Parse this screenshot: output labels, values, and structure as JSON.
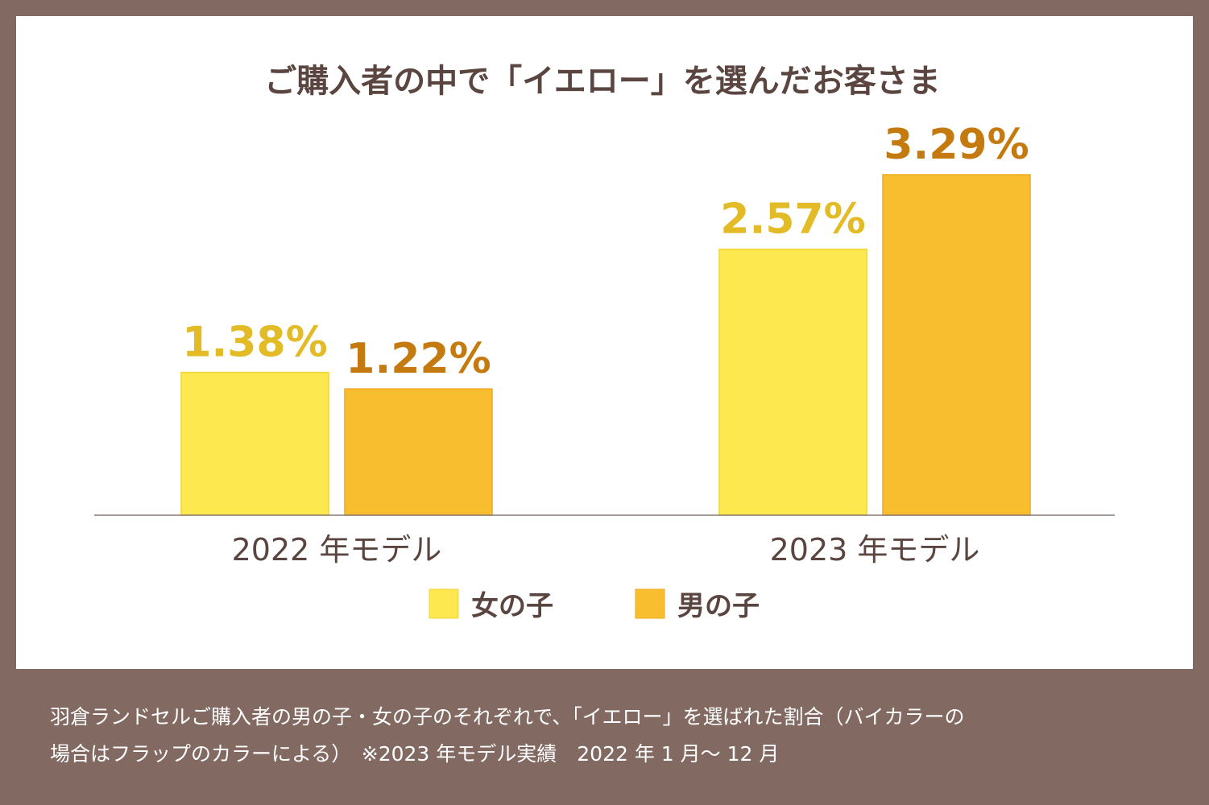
{
  "chart_data": {
    "type": "bar",
    "title": "ご購入者の中で「イエロー」を選んだお客さま",
    "categories": [
      "2022 年モデル",
      "2023 年モデル"
    ],
    "value_labels": [
      [
        "1.38%",
        "1.22%"
      ],
      [
        "2.57%",
        "3.29%"
      ]
    ],
    "series": [
      {
        "name": "女の子",
        "values": [
          1.38,
          2.57
        ],
        "color": "#fde84f",
        "border": "#f3d33a",
        "label_color": "#e3bb26"
      },
      {
        "name": "男の子",
        "values": [
          1.22,
          3.29
        ],
        "color": "#f8be2f",
        "border": "#eeac1f",
        "label_color": "#c47a0e"
      }
    ],
    "ylim": [
      0,
      3.29
    ],
    "grid": false,
    "legend_position": "bottom-center"
  },
  "footnote": {
    "line1": "羽倉ランドセルご購入者の男の子・女の子のそれぞれで、「イエロー」を選ばれた割合（バイカラーの",
    "line2": "場合はフラップのカラーによる）　※2023 年モデル実績　2022 年 1 月～ 12 月"
  },
  "colors": {
    "background_frame": "#826962",
    "panel": "#ffffff",
    "text_dark": "#5a4540",
    "axis_line": "#8c7a75"
  }
}
